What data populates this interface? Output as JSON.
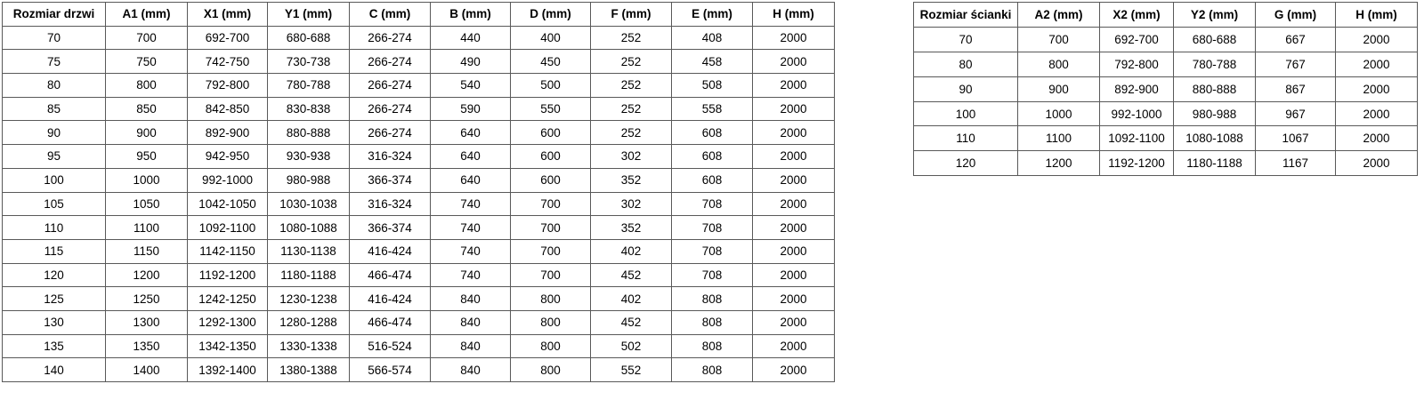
{
  "colors": {
    "border": "#595959",
    "text": "#000000",
    "background": "#ffffff"
  },
  "door_table": {
    "headers": [
      "Rozmiar drzwi",
      "A1 (mm)",
      "X1 (mm)",
      "Y1 (mm)",
      "C (mm)",
      "B (mm)",
      "D (mm)",
      "F (mm)",
      "E (mm)",
      "H (mm)"
    ],
    "rows": [
      [
        "70",
        "700",
        "692-700",
        "680-688",
        "266-274",
        "440",
        "400",
        "252",
        "408",
        "2000"
      ],
      [
        "75",
        "750",
        "742-750",
        "730-738",
        "266-274",
        "490",
        "450",
        "252",
        "458",
        "2000"
      ],
      [
        "80",
        "800",
        "792-800",
        "780-788",
        "266-274",
        "540",
        "500",
        "252",
        "508",
        "2000"
      ],
      [
        "85",
        "850",
        "842-850",
        "830-838",
        "266-274",
        "590",
        "550",
        "252",
        "558",
        "2000"
      ],
      [
        "90",
        "900",
        "892-900",
        "880-888",
        "266-274",
        "640",
        "600",
        "252",
        "608",
        "2000"
      ],
      [
        "95",
        "950",
        "942-950",
        "930-938",
        "316-324",
        "640",
        "600",
        "302",
        "608",
        "2000"
      ],
      [
        "100",
        "1000",
        "992-1000",
        "980-988",
        "366-374",
        "640",
        "600",
        "352",
        "608",
        "2000"
      ],
      [
        "105",
        "1050",
        "1042-1050",
        "1030-1038",
        "316-324",
        "740",
        "700",
        "302",
        "708",
        "2000"
      ],
      [
        "110",
        "1100",
        "1092-1100",
        "1080-1088",
        "366-374",
        "740",
        "700",
        "352",
        "708",
        "2000"
      ],
      [
        "115",
        "1150",
        "1142-1150",
        "1130-1138",
        "416-424",
        "740",
        "700",
        "402",
        "708",
        "2000"
      ],
      [
        "120",
        "1200",
        "1192-1200",
        "1180-1188",
        "466-474",
        "740",
        "700",
        "452",
        "708",
        "2000"
      ],
      [
        "125",
        "1250",
        "1242-1250",
        "1230-1238",
        "416-424",
        "840",
        "800",
        "402",
        "808",
        "2000"
      ],
      [
        "130",
        "1300",
        "1292-1300",
        "1280-1288",
        "466-474",
        "840",
        "800",
        "452",
        "808",
        "2000"
      ],
      [
        "135",
        "1350",
        "1342-1350",
        "1330-1338",
        "516-524",
        "840",
        "800",
        "502",
        "808",
        "2000"
      ],
      [
        "140",
        "1400",
        "1392-1400",
        "1380-1388",
        "566-574",
        "840",
        "800",
        "552",
        "808",
        "2000"
      ]
    ]
  },
  "wall_table": {
    "headers": [
      "Rozmiar ścianki",
      "A2 (mm)",
      "X2 (mm)",
      "Y2 (mm)",
      "G (mm)",
      "H (mm)"
    ],
    "rows": [
      [
        "70",
        "700",
        "692-700",
        "680-688",
        "667",
        "2000"
      ],
      [
        "80",
        "800",
        "792-800",
        "780-788",
        "767",
        "2000"
      ],
      [
        "90",
        "900",
        "892-900",
        "880-888",
        "867",
        "2000"
      ],
      [
        "100",
        "1000",
        "992-1000",
        "980-988",
        "967",
        "2000"
      ],
      [
        "110",
        "1100",
        "1092-1100",
        "1080-1088",
        "1067",
        "2000"
      ],
      [
        "120",
        "1200",
        "1192-1200",
        "1180-1188",
        "1167",
        "2000"
      ]
    ]
  }
}
